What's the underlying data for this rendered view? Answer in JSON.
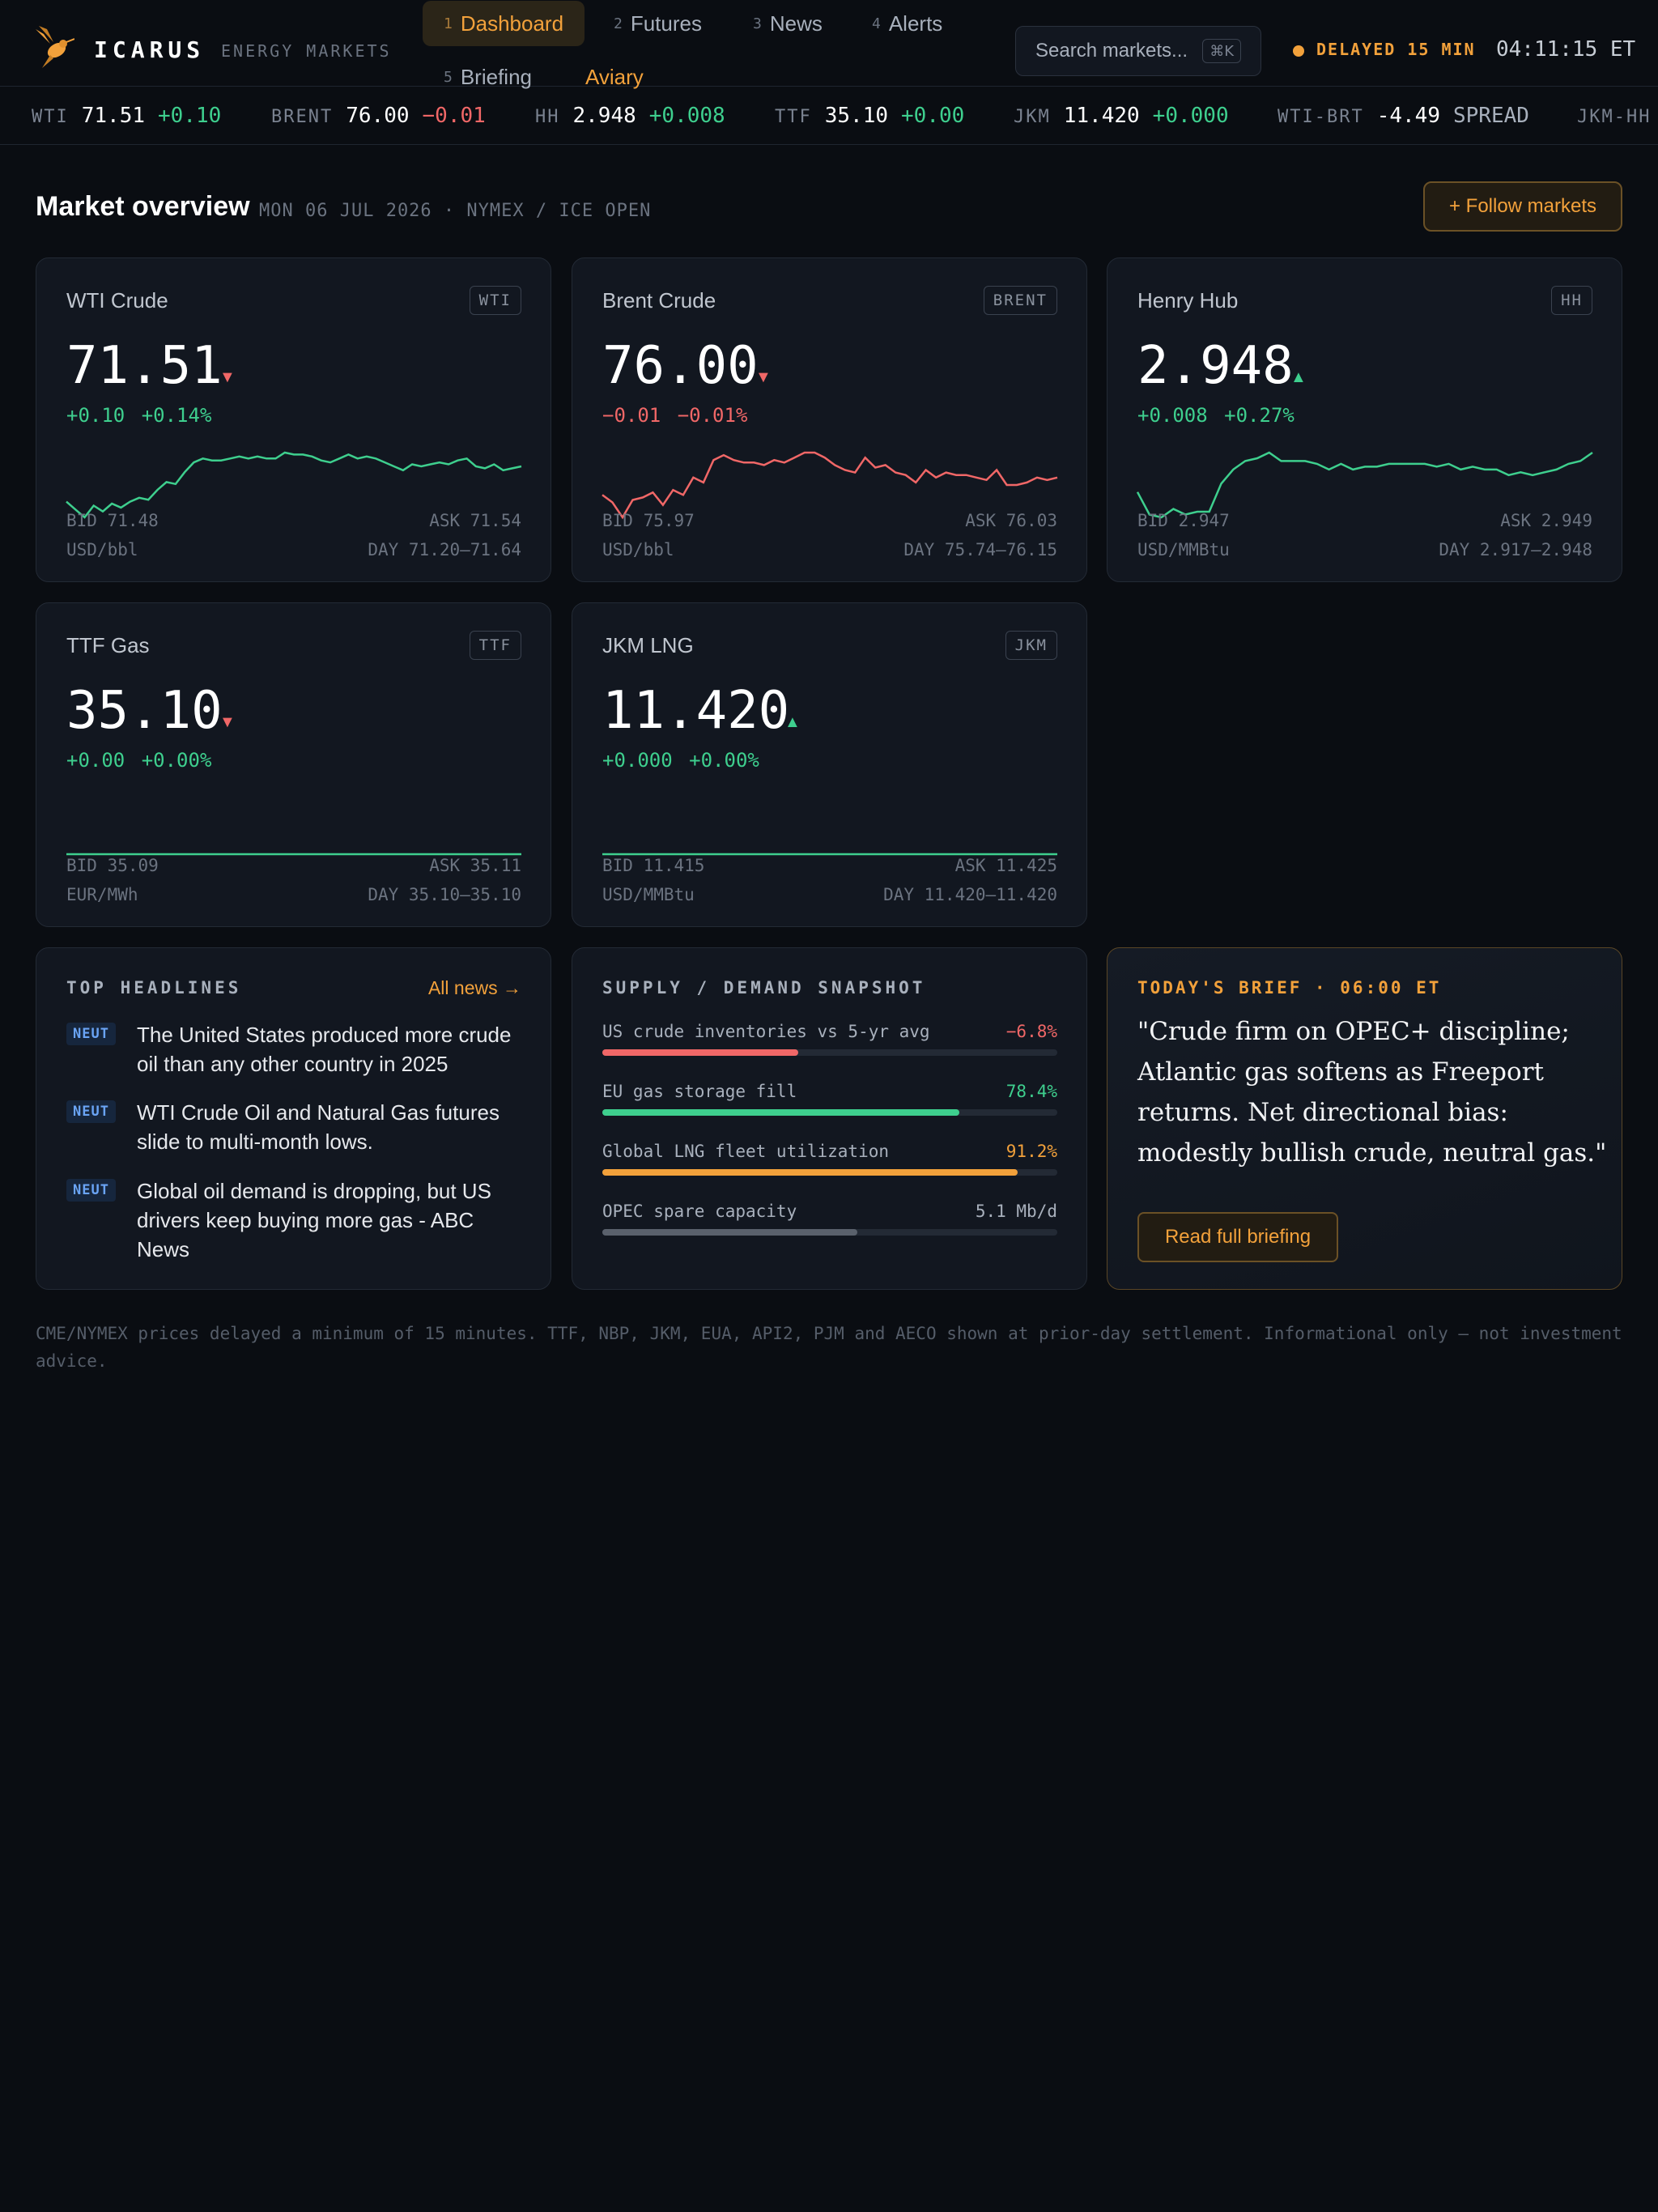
{
  "brand": {
    "name": "ICARUS",
    "subtitle": "ENERGY MARKETS"
  },
  "nav": [
    {
      "num": "1",
      "label": "Dashboard"
    },
    {
      "num": "2",
      "label": "Futures"
    },
    {
      "num": "3",
      "label": "News"
    },
    {
      "num": "4",
      "label": "Alerts"
    },
    {
      "num": "5",
      "label": "Briefing"
    },
    {
      "num": "",
      "label": "Aviary"
    }
  ],
  "search": {
    "placeholder": "Search markets...",
    "shortcut": "⌘K"
  },
  "status": {
    "delay": "DELAYED 15 MIN",
    "clock": "04:11:15 ET"
  },
  "ticker": [
    {
      "sym": "WTI",
      "price": "71.51",
      "chg": "+0.10"
    },
    {
      "sym": "BRENT",
      "price": "76.00",
      "chg": "−0.01"
    },
    {
      "sym": "HH",
      "price": "2.948",
      "chg": "+0.008"
    },
    {
      "sym": "TTF",
      "price": "35.10",
      "chg": "+0.00"
    },
    {
      "sym": "JKM",
      "price": "11.420",
      "chg": "+0.000"
    },
    {
      "sym": "WTI-BRT",
      "price": "-4.49",
      "chg": "SPREAD"
    },
    {
      "sym": "JKM-HH",
      "price": "",
      "chg": ""
    }
  ],
  "overview": {
    "title": "Market overview",
    "subtitle": "MON 06 JUL 2026 · NYMEX / ICE OPEN",
    "follow_label": "+ Follow markets"
  },
  "colors": {
    "accent": "#f2a13b",
    "up": "#3ecf8e",
    "down": "#f06767",
    "badge": "#6aa4f5"
  },
  "cards": [
    {
      "name": "WTI Crude",
      "tag": "WTI",
      "price": "71.51",
      "arrow": "▼",
      "direction": "down",
      "change": "+0.10",
      "change_pct": "+0.14%",
      "change_dir": "up",
      "bid": "BID 71.48",
      "ask": "ASK 71.54",
      "unit": "USD/bbl",
      "day": "DAY 71.20–71.64",
      "spark": [
        71.3,
        71.26,
        71.22,
        71.28,
        71.25,
        71.29,
        71.27,
        71.3,
        71.32,
        71.31,
        71.36,
        71.4,
        71.39,
        71.45,
        71.5,
        71.52,
        71.51,
        71.51,
        71.52,
        71.53,
        71.52,
        71.53,
        71.52,
        71.52,
        71.55,
        71.54,
        71.54,
        71.53,
        71.51,
        71.5,
        71.52,
        71.54,
        71.52,
        71.53,
        71.52,
        71.5,
        71.48,
        71.46,
        71.49,
        71.48,
        71.49,
        71.5,
        71.49,
        71.51,
        71.52,
        71.48,
        71.47,
        71.49,
        71.46,
        71.47,
        71.48
      ]
    },
    {
      "name": "Brent Crude",
      "tag": "BRENT",
      "price": "76.00",
      "arrow": "▼",
      "direction": "down",
      "change": "−0.01",
      "change_pct": "−0.01%",
      "change_dir": "down",
      "bid": "BID 75.97",
      "ask": "ASK 76.03",
      "unit": "USD/bbl",
      "day": "DAY 75.74–76.15",
      "spark": [
        75.88,
        75.85,
        75.79,
        75.86,
        75.87,
        75.89,
        75.84,
        75.9,
        75.88,
        75.95,
        75.93,
        76.02,
        76.04,
        76.02,
        76.01,
        76.01,
        76.0,
        76.02,
        76.01,
        76.03,
        76.05,
        76.05,
        76.03,
        76.0,
        75.98,
        75.97,
        76.03,
        75.99,
        76.0,
        75.97,
        75.96,
        75.93,
        75.98,
        75.95,
        75.97,
        75.96,
        75.96,
        75.95,
        75.94,
        75.98,
        75.92,
        75.92,
        75.93,
        75.95,
        75.94,
        75.95
      ]
    },
    {
      "name": "Henry Hub",
      "tag": "HH",
      "price": "2.948",
      "arrow": "▲",
      "direction": "up",
      "change": "+0.008",
      "change_pct": "+0.27%",
      "change_dir": "up",
      "bid": "BID 2.947",
      "ask": "ASK 2.949",
      "unit": "USD/MMBtu",
      "day": "DAY 2.917–2.948",
      "spark": [
        2.925,
        2.917,
        2.916,
        2.919,
        2.917,
        2.918,
        2.918,
        2.928,
        2.933,
        2.936,
        2.937,
        2.939,
        2.936,
        2.936,
        2.936,
        2.935,
        2.933,
        2.935,
        2.933,
        2.934,
        2.934,
        2.935,
        2.935,
        2.935,
        2.935,
        2.934,
        2.935,
        2.933,
        2.934,
        2.933,
        2.933,
        2.931,
        2.932,
        2.931,
        2.932,
        2.933,
        2.935,
        2.936,
        2.939
      ]
    },
    {
      "name": "TTF Gas",
      "tag": "TTF",
      "price": "35.10",
      "arrow": "▼",
      "direction": "down",
      "change": "+0.00",
      "change_pct": "+0.00%",
      "change_dir": "up",
      "bid": "BID 35.09",
      "ask": "ASK 35.11",
      "unit": "EUR/MWh",
      "day": "DAY 35.10–35.10",
      "spark": [
        35.1,
        35.1
      ]
    },
    {
      "name": "JKM LNG",
      "tag": "JKM",
      "price": "11.420",
      "arrow": "▲",
      "direction": "up",
      "change": "+0.000",
      "change_pct": "+0.00%",
      "change_dir": "up",
      "bid": "BID 11.415",
      "ask": "ASK 11.425",
      "unit": "USD/MMBtu",
      "day": "DAY 11.420–11.420",
      "spark": [
        11.42,
        11.42
      ]
    }
  ],
  "headlines": {
    "title": "TOP HEADLINES",
    "all_label": "All news →",
    "items": [
      {
        "badge": "NEUT",
        "text": "The United States produced more crude oil than any other country in 2025"
      },
      {
        "badge": "NEUT",
        "text": "WTI Crude Oil and Natural Gas futures slide to multi-month lows."
      },
      {
        "badge": "NEUT",
        "text": "Global oil demand is dropping, but US drivers keep buying more gas - ABC News"
      }
    ]
  },
  "supply": {
    "title": "SUPPLY / DEMAND SNAPSHOT",
    "rows": [
      {
        "label": "US crude inventories vs 5-yr avg",
        "value": "−6.8%",
        "fill_pct": 43,
        "color": "#f06767",
        "value_color": "#f06767"
      },
      {
        "label": "EU gas storage fill",
        "value": "78.4%",
        "fill_pct": 78.4,
        "color": "#3ecf8e",
        "value_color": "#3ecf8e"
      },
      {
        "label": "Global LNG fleet utilization",
        "value": "91.2%",
        "fill_pct": 91.2,
        "color": "#f2a13b",
        "value_color": "#f2a13b"
      },
      {
        "label": "OPEC spare capacity",
        "value": "5.1 Mb/d",
        "fill_pct": 56,
        "color": "#5a616c",
        "value_color": "#a8b0bc"
      }
    ]
  },
  "brief": {
    "title": "TODAY'S BRIEF · 06:00 ET",
    "quote": "\"Crude firm on OPEC+ discipline; Atlantic gas softens as Freeport returns. Net directional bias: modestly bullish crude, neutral gas.\"",
    "button_label": "Read full briefing"
  },
  "disclaimer": "CME/NYMEX prices delayed a minimum of 15 minutes. TTF, NBP, JKM, EUA, API2, PJM and AECO shown at prior-day settlement. Informational only — not investment advice."
}
